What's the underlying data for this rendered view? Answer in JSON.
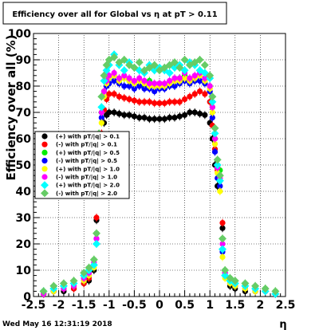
{
  "chart_data": {
    "type": "scatter",
    "title": "Efficiency over all for Global vs   η at pT > 0.11",
    "ylabel": "Efficiency over all (%)",
    "xlabel": "η",
    "footer": "Wed May 16 12:31:19 2018",
    "xlim": [
      -2.5,
      2.5
    ],
    "ylim": [
      0,
      100
    ],
    "xticks": [
      "-2.5",
      "-2",
      "-1.5",
      "-1",
      "-0.5",
      "0",
      "0.5",
      "1",
      "1.5",
      "2",
      "2.5"
    ],
    "yticks": [
      "0",
      "10",
      "20",
      "30",
      "40",
      "50",
      "60",
      "70",
      "80",
      "90",
      "100"
    ],
    "grid": true,
    "legend_position": "left-middle",
    "series": [
      {
        "name": "(+) with pT/|q| > 0.1",
        "color": "#000000",
        "marker": "circle",
        "x": [
          -2.3,
          -2.1,
          -1.9,
          -1.7,
          -1.5,
          -1.4,
          -1.3,
          -1.25,
          -1.2,
          -1.15,
          -1.1,
          -1.05,
          -1.0,
          -0.9,
          -0.8,
          -0.7,
          -0.6,
          -0.5,
          -0.4,
          -0.3,
          -0.2,
          -0.1,
          0.0,
          0.1,
          0.2,
          0.3,
          0.4,
          0.5,
          0.6,
          0.7,
          0.8,
          0.9,
          1.0,
          1.05,
          1.1,
          1.15,
          1.2,
          1.25,
          1.3,
          1.4,
          1.5,
          1.7,
          1.9,
          2.1,
          2.3
        ],
        "y": [
          1,
          2,
          2,
          3,
          5,
          6,
          10,
          29,
          50,
          58,
          66,
          69,
          70,
          70,
          69.5,
          69,
          69,
          68.5,
          68,
          68,
          67.5,
          67.5,
          67.5,
          67.5,
          68,
          68,
          68.5,
          69,
          70,
          70,
          69.5,
          69,
          66,
          60,
          50,
          42,
          44,
          26,
          8,
          4,
          3,
          2,
          2,
          2,
          1
        ]
      },
      {
        "name": "(-) with pT/|q| > 0.1",
        "color": "#ff0000",
        "marker": "circle",
        "x": [
          -2.3,
          -2.1,
          -1.9,
          -1.7,
          -1.5,
          -1.4,
          -1.3,
          -1.25,
          -1.2,
          -1.15,
          -1.1,
          -1.05,
          -1.0,
          -0.9,
          -0.8,
          -0.7,
          -0.6,
          -0.5,
          -0.4,
          -0.3,
          -0.2,
          -0.1,
          0.0,
          0.1,
          0.2,
          0.3,
          0.4,
          0.5,
          0.6,
          0.7,
          0.8,
          0.9,
          1.0,
          1.05,
          1.1,
          1.15,
          1.2,
          1.25,
          1.3,
          1.4,
          1.5,
          1.7,
          1.9,
          2.1,
          2.3
        ],
        "y": [
          1,
          2,
          3,
          3,
          5,
          7,
          12,
          30,
          53,
          62,
          71,
          75,
          77,
          77,
          76,
          75.5,
          75,
          74.5,
          74,
          74,
          74,
          73.5,
          73.5,
          73.5,
          74,
          74,
          74,
          75,
          76,
          77,
          78,
          77,
          74,
          65,
          56,
          48,
          46,
          28,
          9,
          5,
          4,
          3,
          2,
          2,
          1
        ]
      },
      {
        "name": "(+) with pT/|q| > 0.5",
        "color": "#00ee00",
        "marker": "circle",
        "x": [
          -2.3,
          -2.1,
          -1.9,
          -1.7,
          -1.5,
          -1.4,
          -1.3,
          -1.25,
          -1.2,
          -1.15,
          -1.1,
          -1.05,
          -1.0,
          -0.9,
          -0.8,
          -0.7,
          -0.6,
          -0.5,
          -0.4,
          -0.3,
          -0.2,
          -0.1,
          0.0,
          0.1,
          0.2,
          0.3,
          0.4,
          0.5,
          0.6,
          0.7,
          0.8,
          0.9,
          1.0,
          1.05,
          1.1,
          1.15,
          1.2,
          1.25,
          1.3,
          1.4,
          1.5,
          1.7,
          1.9,
          2.1,
          2.3
        ],
        "y": [
          2,
          3,
          4,
          5,
          7,
          9,
          14,
          24,
          58,
          70,
          78,
          82,
          83,
          84,
          82,
          83,
          82,
          81,
          82,
          80,
          82,
          80,
          81,
          80,
          81,
          82,
          83,
          84,
          82,
          83,
          84,
          82,
          80,
          72,
          60,
          50,
          48,
          22,
          10,
          7,
          5,
          4,
          3,
          3,
          2
        ]
      },
      {
        "name": "(-) with pT/|q| > 0.5",
        "color": "#0000ff",
        "marker": "circle",
        "x": [
          -2.3,
          -2.1,
          -1.9,
          -1.7,
          -1.5,
          -1.4,
          -1.3,
          -1.25,
          -1.2,
          -1.15,
          -1.1,
          -1.05,
          -1.0,
          -0.9,
          -0.8,
          -0.7,
          -0.6,
          -0.5,
          -0.4,
          -0.3,
          -0.2,
          -0.1,
          0.0,
          0.1,
          0.2,
          0.3,
          0.4,
          0.5,
          0.6,
          0.7,
          0.8,
          0.9,
          1.0,
          1.05,
          1.1,
          1.15,
          1.2,
          1.25,
          1.3,
          1.4,
          1.5,
          1.7,
          1.9,
          2.1,
          2.3
        ],
        "y": [
          1,
          2,
          3,
          4,
          6,
          8,
          12,
          22,
          55,
          68,
          76,
          80,
          81,
          82,
          81,
          80,
          80,
          79,
          80,
          79,
          79,
          78,
          79,
          79,
          80,
          80,
          81,
          82,
          81,
          82,
          82,
          81,
          78,
          68,
          55,
          45,
          42,
          17,
          8,
          5,
          4,
          3,
          2,
          2,
          1
        ]
      },
      {
        "name": "(+) with pT/|q| > 1.0",
        "color": "#ffff00",
        "marker": "circle",
        "x": [
          -2.3,
          -2.1,
          -1.9,
          -1.7,
          -1.5,
          -1.4,
          -1.3,
          -1.25,
          -1.2,
          -1.15,
          -1.1,
          -1.05,
          -1.0,
          -0.9,
          -0.8,
          -0.7,
          -0.6,
          -0.5,
          -0.4,
          -0.3,
          -0.2,
          -0.1,
          0.0,
          0.1,
          0.2,
          0.3,
          0.4,
          0.5,
          0.6,
          0.7,
          0.8,
          0.9,
          1.0,
          1.05,
          1.1,
          1.15,
          1.2,
          1.25,
          1.3,
          1.4,
          1.5,
          1.7,
          1.9,
          2.1,
          2.3
        ],
        "y": [
          1,
          2,
          3,
          4,
          6,
          8,
          11,
          20,
          52,
          66,
          76,
          81,
          83,
          84,
          82,
          83,
          82,
          81,
          82,
          81,
          80,
          80,
          80,
          80,
          81,
          82,
          82,
          83,
          82,
          83,
          84,
          82,
          79,
          70,
          58,
          47,
          40,
          15,
          7,
          5,
          4,
          3,
          2,
          2,
          1
        ]
      },
      {
        "name": "(-) with pT/|q| > 1.0",
        "color": "#ff00ff",
        "marker": "circle",
        "x": [
          -2.3,
          -2.1,
          -1.9,
          -1.7,
          -1.5,
          -1.4,
          -1.3,
          -1.25,
          -1.2,
          -1.15,
          -1.1,
          -1.05,
          -1.0,
          -0.9,
          -0.8,
          -0.7,
          -0.6,
          -0.5,
          -0.4,
          -0.3,
          -0.2,
          -0.1,
          0.0,
          0.1,
          0.2,
          0.3,
          0.4,
          0.5,
          0.6,
          0.7,
          0.8,
          0.9,
          1.0,
          1.05,
          1.1,
          1.15,
          1.2,
          1.25,
          1.3,
          1.4,
          1.5,
          1.7,
          1.9,
          2.1,
          2.3
        ],
        "y": [
          1,
          3,
          3,
          4,
          7,
          9,
          13,
          22,
          56,
          70,
          78,
          82,
          84,
          85,
          83,
          84,
          83,
          82,
          83,
          82,
          81,
          81,
          81,
          81,
          82,
          83,
          83,
          85,
          83,
          84,
          85,
          83,
          80,
          72,
          60,
          49,
          45,
          20,
          9,
          6,
          5,
          4,
          3,
          2,
          1
        ]
      },
      {
        "name": "(+) with pT/|q| > 2.0",
        "color": "#00ffff",
        "marker": "diamond",
        "x": [
          -2.3,
          -2.1,
          -1.9,
          -1.7,
          -1.5,
          -1.4,
          -1.3,
          -1.25,
          -1.2,
          -1.15,
          -1.1,
          -1.05,
          -1.0,
          -0.9,
          -0.8,
          -0.7,
          -0.6,
          -0.5,
          -0.4,
          -0.3,
          -0.2,
          -0.1,
          0.0,
          0.1,
          0.2,
          0.3,
          0.4,
          0.5,
          0.6,
          0.7,
          0.8,
          0.9,
          1.0,
          1.05,
          1.1,
          1.15,
          1.2,
          1.25,
          1.3,
          1.4,
          1.5,
          1.7,
          1.9,
          2.1,
          2.3
        ],
        "y": [
          2,
          3,
          4,
          5,
          8,
          10,
          12,
          20,
          56,
          72,
          82,
          86,
          88,
          92,
          88,
          86,
          89,
          87,
          86,
          85,
          88,
          86,
          87,
          86,
          85,
          87,
          88,
          86,
          89,
          88,
          86,
          85,
          83,
          74,
          62,
          50,
          44,
          18,
          8,
          6,
          5,
          4,
          3,
          2,
          1
        ]
      },
      {
        "name": "(-) with pT/|q| > 2.0",
        "color": "#66cc66",
        "marker": "diamond",
        "x": [
          -2.3,
          -2.1,
          -1.9,
          -1.7,
          -1.5,
          -1.4,
          -1.3,
          -1.25,
          -1.2,
          -1.15,
          -1.1,
          -1.05,
          -1.0,
          -0.9,
          -0.8,
          -0.7,
          -0.6,
          -0.5,
          -0.4,
          -0.3,
          -0.2,
          -0.1,
          0.0,
          0.1,
          0.2,
          0.3,
          0.4,
          0.5,
          0.6,
          0.7,
          0.8,
          0.9,
          1.0,
          1.05,
          1.1,
          1.15,
          1.2,
          1.25,
          1.3,
          1.4,
          1.5,
          1.7,
          1.9,
          2.1,
          2.3
        ],
        "y": [
          2,
          4,
          5,
          6,
          9,
          11,
          14,
          24,
          62,
          76,
          84,
          88,
          90,
          91,
          89,
          90,
          88,
          87,
          89,
          86,
          87,
          88,
          86,
          87,
          88,
          89,
          87,
          90,
          88,
          89,
          90,
          88,
          84,
          76,
          64,
          52,
          46,
          22,
          10,
          7,
          6,
          5,
          4,
          3,
          2
        ]
      }
    ]
  }
}
